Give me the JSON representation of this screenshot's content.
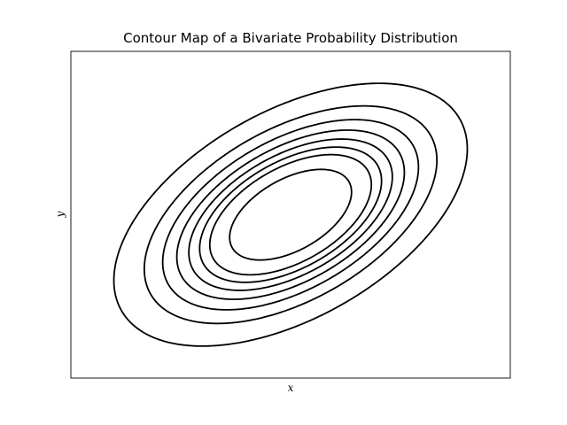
{
  "chart_data": {
    "type": "contour",
    "title": "Contour Map of a Bivariate Probability Distribution",
    "xlabel": "x",
    "ylabel": "y",
    "xlim": [
      -3,
      3
    ],
    "ylim": [
      -3,
      3
    ],
    "xticks": [],
    "yticks": [],
    "grid": false,
    "legend": "none",
    "distribution": {
      "mean": [
        0,
        0
      ],
      "std": [
        1,
        1
      ],
      "correlation": 0.5
    },
    "levels": [
      0.01,
      0.025,
      0.04,
      0.055,
      0.07,
      0.085,
      0.1,
      0.13
    ],
    "line_color": "#000000"
  }
}
